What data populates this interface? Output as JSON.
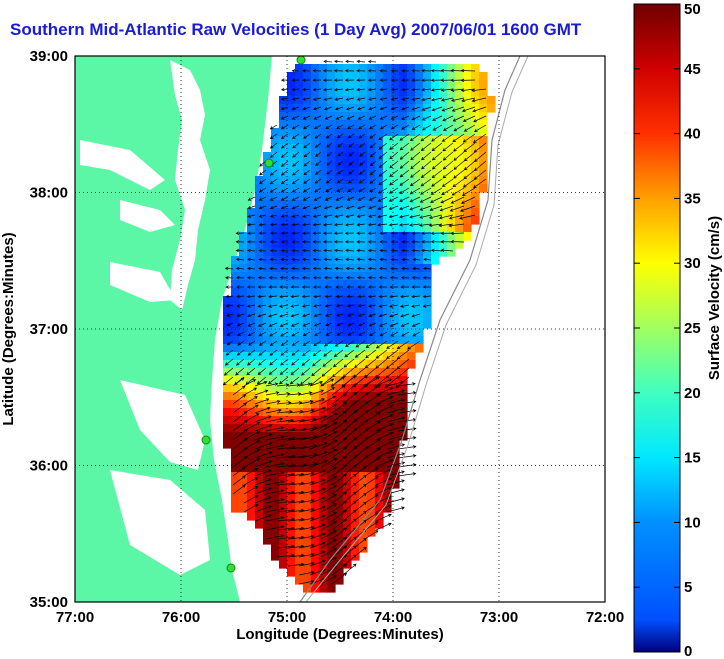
{
  "title": "Southern Mid-Atlantic Raw Velocities (1 Day Avg) 2007/06/01 1600 GMT",
  "map": {
    "xlabel": "Longitude (Degrees:Minutes)",
    "ylabel": "Latitude (Degrees:Minutes)",
    "x_ticks": [
      "77:00",
      "76:00",
      "75:00",
      "74:00",
      "73:00",
      "72:00"
    ],
    "y_ticks": [
      "39:00",
      "38:00",
      "37:00",
      "36:00",
      "35:00"
    ],
    "lon_range": [
      -77,
      -72
    ],
    "lat_range": [
      35,
      39
    ],
    "grid": "dotted",
    "land_color": "#5cf7a6",
    "water_color": "#ffffff",
    "station_color": "#33dd33"
  },
  "colorbar": {
    "label": "Surface Velocity (cm/s)",
    "ticks": [
      "0",
      "5",
      "10",
      "15",
      "20",
      "25",
      "30",
      "35",
      "40",
      "45",
      "50"
    ],
    "range": [
      0,
      50
    ],
    "colormap": "jet"
  }
}
